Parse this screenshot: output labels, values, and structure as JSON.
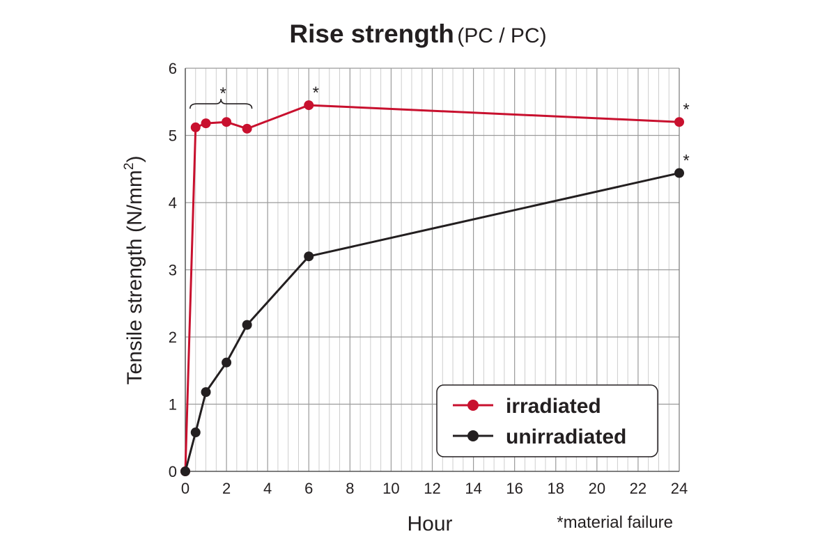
{
  "chart_data": {
    "type": "line",
    "title": "Rise strength",
    "subtitle": "(PC / PC)",
    "xlabel": "Hour",
    "ylabel": "Tensile strength (N/mm",
    "ylabel_superscript": "2",
    "ylabel_close": ")",
    "xlim": [
      0,
      24
    ],
    "ylim": [
      0,
      6
    ],
    "x_ticks": [
      "0",
      "2",
      "4",
      "6",
      "8",
      "10",
      "12",
      "14",
      "16",
      "18",
      "20",
      "22",
      "24"
    ],
    "y_ticks": [
      "0",
      "1",
      "2",
      "3",
      "4",
      "5",
      "6"
    ],
    "grid": true,
    "legend_position": "bottom-right",
    "footnote": "*material failure",
    "failure_marker": "*",
    "series": [
      {
        "name": "irradiated",
        "color": "#c8102e",
        "x": [
          0,
          0.5,
          1,
          2,
          3,
          6,
          24
        ],
        "y": [
          0,
          5.12,
          5.18,
          5.2,
          5.1,
          5.45,
          5.2
        ]
      },
      {
        "name": "unirradiated",
        "color": "#231f20",
        "x": [
          0,
          0.5,
          1,
          2,
          3,
          6,
          24
        ],
        "y": [
          0,
          0.58,
          1.18,
          1.62,
          2.18,
          3.2,
          4.44
        ]
      }
    ],
    "annotations": [
      {
        "text": "*",
        "series": 0,
        "x_range": [
          0.5,
          3
        ],
        "type": "brace"
      },
      {
        "text": "*",
        "series": 0,
        "x": 6
      },
      {
        "text": "*",
        "series": 0,
        "x": 24
      },
      {
        "text": "*",
        "series": 1,
        "x": 24
      }
    ]
  }
}
